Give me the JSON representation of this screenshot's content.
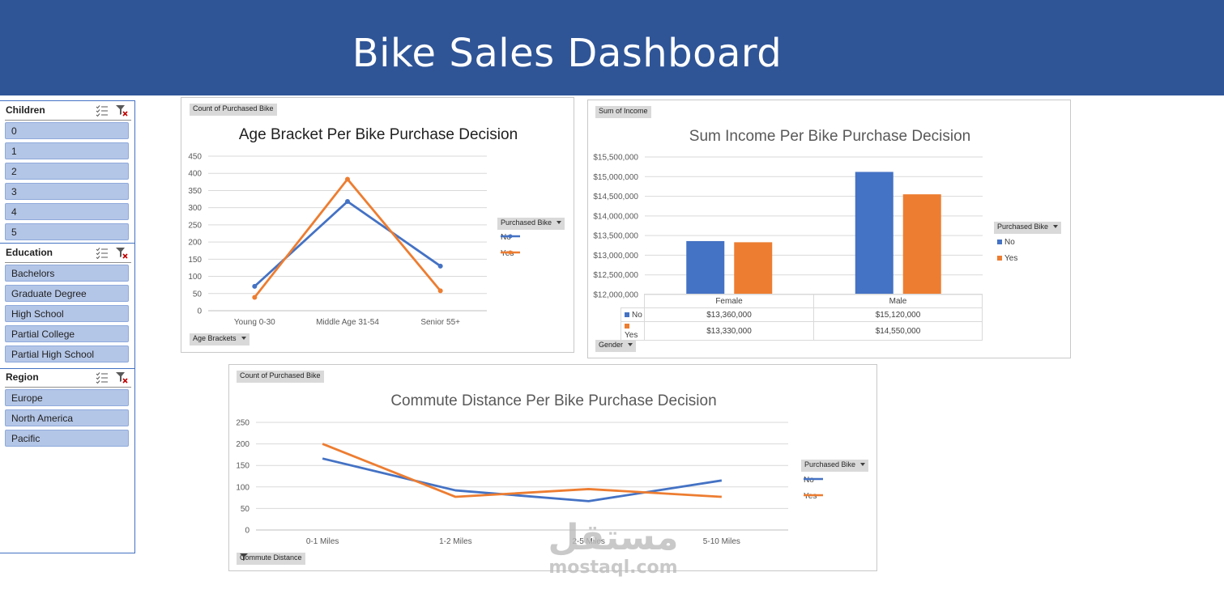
{
  "header": {
    "title": "Bike Sales Dashboard"
  },
  "colors": {
    "no": "#4472c4",
    "yes": "#ed7d31",
    "header_bg": "#2f5597",
    "slicer_item": "#b4c6e7"
  },
  "slicers": {
    "children": {
      "title": "Children",
      "items": [
        "0",
        "1",
        "2",
        "3",
        "4",
        "5"
      ]
    },
    "education": {
      "title": "Education",
      "items": [
        "Bachelors",
        "Graduate Degree",
        "High School",
        "Partial College",
        "Partial High School"
      ]
    },
    "region": {
      "title": "Region",
      "items": [
        "Europe",
        "North America",
        "Pacific"
      ]
    }
  },
  "charts": {
    "age": {
      "value_button": "Count of Purchased Bike",
      "axis_button": "Age Brackets",
      "legend_title": "Purchased Bike",
      "legend_no": "No",
      "legend_yes": "Yes"
    },
    "income": {
      "value_button": "Sum of Income",
      "axis_button": "Gender",
      "legend_title": "Purchased Bike",
      "legend_no": "No",
      "legend_yes": "Yes"
    },
    "commute": {
      "value_button": "Count of Purchased Bike",
      "axis_button": "Commute Distance",
      "legend_title": "Purchased Bike",
      "legend_no": "No",
      "legend_yes": "Yes"
    }
  },
  "chart_data": [
    {
      "type": "line",
      "title": "Age Bracket Per Bike Purchase Decision",
      "categories": [
        "Young 0-30",
        "Middle Age 31-54",
        "Senior 55+"
      ],
      "series": [
        {
          "name": "No",
          "values": [
            71,
            318,
            130
          ]
        },
        {
          "name": "Yes",
          "values": [
            39,
            383,
            58
          ]
        }
      ],
      "ylim": [
        0,
        450
      ],
      "yticks": [
        "0",
        "50",
        "100",
        "150",
        "200",
        "250",
        "300",
        "350",
        "400",
        "450"
      ],
      "xlabel": "",
      "ylabel": ""
    },
    {
      "type": "bar",
      "title": "Sum Income Per Bike Purchase Decision",
      "categories": [
        "Female",
        "Male"
      ],
      "series": [
        {
          "name": "No",
          "values": [
            13360000,
            15120000
          ],
          "labels": [
            "$13,360,000",
            "$15,120,000"
          ]
        },
        {
          "name": "Yes",
          "values": [
            13330000,
            14550000
          ],
          "labels": [
            "$13,330,000",
            "$14,550,000"
          ]
        }
      ],
      "ylim": [
        12000000,
        15500000
      ],
      "yticks": [
        "$12,000,000",
        "$12,500,000",
        "$13,000,000",
        "$13,500,000",
        "$14,000,000",
        "$14,500,000",
        "$15,000,000",
        "$15,500,000"
      ],
      "xlabel": "",
      "ylabel": ""
    },
    {
      "type": "line",
      "title": "Commute Distance Per Bike Purchase Decision",
      "categories": [
        "0-1 Miles",
        "1-2 Miles",
        "2-5 Miles",
        "5-10 Miles"
      ],
      "series": [
        {
          "name": "No",
          "values": [
            166,
            92,
            67,
            115
          ]
        },
        {
          "name": "Yes",
          "values": [
            200,
            77,
            95,
            77
          ]
        }
      ],
      "ylim": [
        0,
        250
      ],
      "yticks": [
        "0",
        "50",
        "100",
        "150",
        "200",
        "250"
      ],
      "xlabel": "",
      "ylabel": ""
    }
  ],
  "watermark": {
    "arabic": "مستقل",
    "latin": "mostaql.com"
  }
}
